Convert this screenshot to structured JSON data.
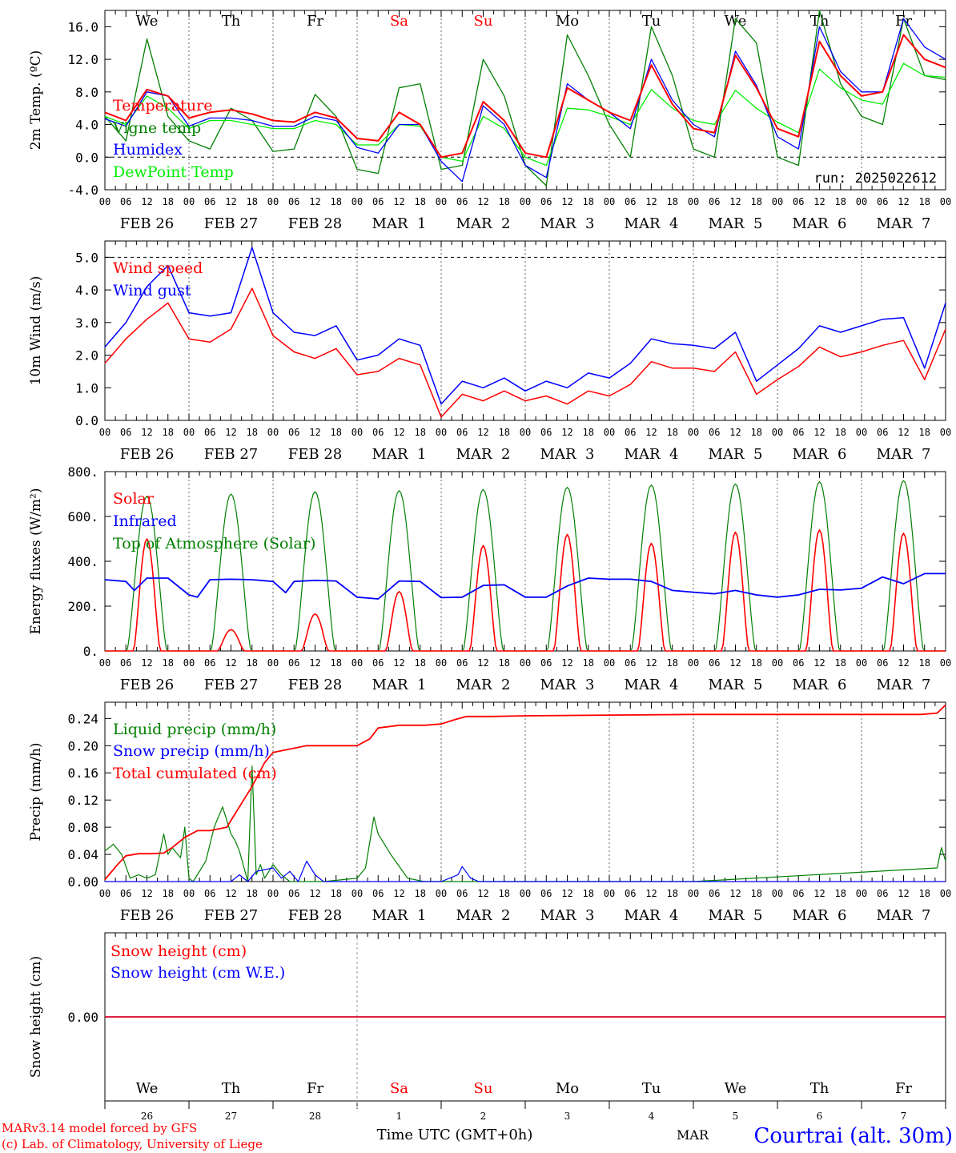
{
  "run_label": "run: 2025022612",
  "footer": {
    "model": "MARv3.14 model forced by GFS",
    "lab": "(c) Lab. of Climatology, University of Liege",
    "xlabel": "Time UTC (GMT+0h)",
    "month": "MAR",
    "station": "Courtrai (alt. 30m)"
  },
  "hour_ticks": [
    "00",
    "06",
    "12",
    "18"
  ],
  "date_labels": [
    "FEB 26",
    "FEB 27",
    "FEB 28",
    "MAR  1",
    "MAR  2",
    "MAR  3",
    "MAR  4",
    "MAR  5",
    "MAR  6",
    "MAR  7"
  ],
  "weekdays": [
    "We",
    "Th",
    "Fr",
    "Sa",
    "Su",
    "Mo",
    "Tu",
    "We",
    "Th",
    "Fr"
  ],
  "day_numbers": [
    "26",
    "27",
    "28",
    "1",
    "2",
    "3",
    "4",
    "5",
    "6",
    "7"
  ],
  "colors": {
    "weekend": "#ff0000",
    "weekday": "#000000",
    "red": "#ff0000",
    "blue": "#0000ff",
    "green": "#008000",
    "lightgreen": "#00ee00"
  },
  "chart_data": [
    {
      "type": "line",
      "ylabel": "2m Temp. (ºC)",
      "ylim": [
        -4,
        18
      ],
      "yticks": [
        "-4.0",
        "0.0",
        "4.0",
        "8.0",
        "12.0",
        "16.0"
      ],
      "grid": "dotted day separators, dashed zero line",
      "legend": "top-left",
      "x_days": [
        0,
        0.25,
        0.5,
        0.75,
        1,
        1.25,
        1.5,
        1.75,
        2,
        2.25,
        2.5,
        2.75,
        3,
        3.25,
        3.5,
        3.75,
        4,
        4.25,
        4.5,
        4.75,
        5,
        5.25,
        5.5,
        5.75,
        6,
        6.25,
        6.5,
        6.75,
        7,
        7.25,
        7.5,
        7.75,
        8,
        8.25,
        8.5,
        8.75,
        9,
        9.25,
        9.5,
        9.75,
        10
      ],
      "series": [
        {
          "name": "Temperature",
          "color": "#ff0000",
          "values": [
            5.5,
            4.5,
            8.3,
            7.5,
            4.8,
            5.5,
            5.8,
            5.3,
            4.5,
            4.3,
            5.5,
            4.8,
            2.3,
            2,
            5.5,
            4,
            0,
            0.5,
            6.8,
            4.5,
            0.5,
            0,
            8.5,
            7,
            5.5,
            4.5,
            11.3,
            6.5,
            3.5,
            3,
            12.5,
            8.5,
            3.5,
            2.5,
            14.2,
            10,
            7.5,
            8,
            15,
            12,
            11
          ]
        },
        {
          "name": "Vigne temp",
          "color": "#008000",
          "values": [
            5,
            2,
            14.5,
            5,
            2,
            1,
            6,
            4.5,
            0.7,
            1,
            7.7,
            5,
            -1.5,
            -2,
            8.5,
            9,
            -1.5,
            -1,
            12,
            7.5,
            -1,
            -3.5,
            15,
            10,
            4,
            0,
            16,
            10,
            1,
            0,
            17,
            14,
            0,
            -1,
            18,
            9,
            5,
            4,
            17,
            10,
            9.5
          ]
        },
        {
          "name": "Humidex",
          "color": "#0000ff",
          "values": [
            4.7,
            3.8,
            8,
            7.5,
            3.8,
            4.8,
            4.8,
            4.5,
            3.8,
            3.8,
            5,
            4.5,
            1.2,
            0.5,
            4,
            4,
            -0.5,
            -3,
            6.3,
            4,
            -1,
            -2.5,
            9,
            7,
            5.5,
            3.5,
            12,
            7,
            4,
            2.5,
            13,
            8.8,
            2.5,
            1,
            16,
            10.5,
            8,
            8,
            17,
            13.5,
            12
          ]
        },
        {
          "name": "DewPoint Temp",
          "color": "#00ee00",
          "values": [
            5,
            4,
            7.5,
            6,
            3.5,
            4.5,
            4.5,
            4,
            3.5,
            3.5,
            4.5,
            4,
            1.5,
            1.5,
            4,
            3.8,
            0,
            -0.5,
            5,
            3.5,
            0,
            -1,
            6,
            5.8,
            5,
            4,
            8.3,
            6,
            4.5,
            4,
            8.2,
            6,
            4.3,
            3,
            10.8,
            8.5,
            7,
            6.5,
            11.5,
            10,
            9.8
          ]
        }
      ]
    },
    {
      "type": "line",
      "ylabel": "10m Wind (m/s)",
      "ylim": [
        0,
        5.5
      ],
      "yticks": [
        "0.0",
        "1.0",
        "2.0",
        "3.0",
        "4.0",
        "5.0"
      ],
      "grid": "dotted day separators, dashed line at 5.0",
      "legend": "top-left",
      "x_days": [
        0,
        0.25,
        0.5,
        0.75,
        1,
        1.25,
        1.5,
        1.75,
        2,
        2.25,
        2.5,
        2.75,
        3,
        3.25,
        3.5,
        3.75,
        4,
        4.25,
        4.5,
        4.75,
        5,
        5.25,
        5.5,
        5.75,
        6,
        6.25,
        6.5,
        6.75,
        7,
        7.25,
        7.5,
        7.75,
        8,
        8.25,
        8.5,
        8.75,
        9,
        9.25,
        9.5,
        9.75,
        10
      ],
      "series": [
        {
          "name": "Wind speed",
          "color": "#ff0000",
          "values": [
            1.75,
            2.5,
            3.1,
            3.6,
            2.5,
            2.4,
            2.8,
            4.05,
            2.6,
            2.1,
            1.9,
            2.2,
            1.4,
            1.5,
            1.9,
            1.7,
            0.1,
            0.8,
            0.6,
            0.9,
            0.6,
            0.75,
            0.5,
            0.9,
            0.75,
            1.1,
            1.8,
            1.6,
            1.6,
            1.5,
            2.1,
            0.8,
            1.25,
            1.65,
            2.25,
            1.95,
            2.1,
            2.3,
            2.45,
            1.25,
            2.8
          ]
        },
        {
          "name": "Wind gust",
          "color": "#0000ff",
          "values": [
            2.25,
            3,
            4.1,
            4.75,
            3.3,
            3.2,
            3.3,
            5.3,
            3.3,
            2.7,
            2.6,
            2.9,
            1.85,
            2,
            2.5,
            2.3,
            0.5,
            1.2,
            1,
            1.3,
            0.9,
            1.2,
            1,
            1.45,
            1.3,
            1.75,
            2.5,
            2.35,
            2.3,
            2.2,
            2.7,
            1.2,
            1.7,
            2.2,
            2.9,
            2.7,
            2.9,
            3.1,
            3.15,
            1.6,
            3.6
          ]
        }
      ]
    },
    {
      "type": "line",
      "ylabel": "Energy fluxes (W/m²)",
      "ylim": [
        0,
        800
      ],
      "yticks": [
        "0.",
        "200.",
        "400.",
        "600.",
        "800."
      ],
      "grid": "dotted day separators",
      "legend": "top-left",
      "series": [
        {
          "name": "Solar",
          "color": "#ff0000",
          "daily_peak_hour": 12,
          "daily_peaks": [
            500,
            95,
            165,
            265,
            470,
            520,
            480,
            530,
            540,
            525
          ]
        },
        {
          "name": "Infrared",
          "color": "#0000ff",
          "x_days": [
            0,
            0.25,
            0.35,
            0.5,
            0.75,
            1,
            1.1,
            1.25,
            1.5,
            1.75,
            2,
            2.15,
            2.25,
            2.5,
            2.75,
            3,
            3.25,
            3.5,
            3.75,
            4,
            4.25,
            4.5,
            4.75,
            5,
            5.25,
            5.5,
            5.75,
            6,
            6.25,
            6.5,
            6.75,
            7,
            7.25,
            7.5,
            7.75,
            8,
            8.25,
            8.5,
            8.75,
            9,
            9.25,
            9.5,
            9.75,
            10
          ],
          "values": [
            318,
            310,
            270,
            325,
            325,
            250,
            240,
            318,
            320,
            318,
            310,
            260,
            310,
            315,
            312,
            240,
            232,
            312,
            310,
            238,
            240,
            292,
            295,
            240,
            240,
            290,
            325,
            320,
            320,
            310,
            270,
            262,
            255,
            270,
            250,
            240,
            250,
            275,
            272,
            280,
            330,
            300,
            345,
            345
          ]
        },
        {
          "name": "Top of Atmosphere (Solar)",
          "color": "#008000",
          "daily_peak_hour": 12,
          "daily_peaks": [
            690,
            700,
            710,
            715,
            720,
            730,
            740,
            745,
            755,
            760
          ]
        }
      ]
    },
    {
      "type": "line",
      "ylabel": "Precip (mm/h)",
      "ylim": [
        0,
        0.264
      ],
      "yticks": [
        "0.00",
        "0.04",
        "0.08",
        "0.12",
        "0.16",
        "0.20",
        "0.24"
      ],
      "grid": "dotted day separators, dashed line at 0.264",
      "legend": "top-left",
      "series": [
        {
          "name": "Liquid precip (mm/h)",
          "color": "#008000",
          "x_days": [
            0,
            0.1,
            0.2,
            0.3,
            0.4,
            0.5,
            0.6,
            0.7,
            0.75,
            0.8,
            0.9,
            0.95,
            1,
            1.05,
            1.2,
            1.3,
            1.4,
            1.5,
            1.55,
            1.6,
            1.7,
            1.75,
            1.8,
            1.85,
            1.9,
            2,
            2.1,
            2.2,
            2.4,
            2.6,
            3,
            3.1,
            3.2,
            3.25,
            3.4,
            3.6,
            3.8,
            4,
            4.5,
            5,
            7,
            9.9,
            9.95,
            10
          ],
          "values": [
            0.045,
            0.055,
            0.04,
            0.005,
            0.01,
            0.005,
            0.01,
            0.07,
            0.04,
            0.05,
            0.035,
            0.08,
            0.005,
            0,
            0.03,
            0.08,
            0.11,
            0.07,
            0.06,
            0.045,
            0,
            0.17,
            0.01,
            0.025,
            0.005,
            0.025,
            0.01,
            0,
            0,
            0,
            0.005,
            0.02,
            0.095,
            0.07,
            0.04,
            0.005,
            0,
            0,
            0,
            0,
            0,
            0.02,
            0.05,
            0.03
          ]
        },
        {
          "name": "Snow precip (mm/h)",
          "color": "#0000ff",
          "x_days": [
            0,
            1.5,
            1.6,
            1.7,
            1.8,
            2,
            2.1,
            2.2,
            2.3,
            2.4,
            2.5,
            2.6,
            3,
            4,
            4.1,
            4.2,
            4.25,
            4.35,
            4.45,
            5,
            6,
            7,
            10
          ],
          "values": [
            0,
            0,
            0.01,
            0,
            0.015,
            0.02,
            0.005,
            0.015,
            0,
            0.03,
            0.01,
            0,
            0,
            0,
            0.005,
            0.01,
            0.022,
            0.005,
            0,
            0,
            0,
            0,
            0
          ]
        },
        {
          "name": "Total cumulated (cm)",
          "color": "#ff0000",
          "x_days": [
            0,
            0.15,
            0.25,
            0.4,
            0.55,
            0.7,
            0.8,
            0.95,
            1.1,
            1.25,
            1.45,
            1.6,
            1.75,
            1.9,
            2,
            2.2,
            2.4,
            2.7,
            3,
            3.15,
            3.25,
            3.5,
            3.8,
            4,
            4.15,
            4.3,
            4.6,
            5,
            6,
            7,
            8,
            9,
            9.7,
            9.9,
            10
          ],
          "values": [
            0.003,
            0.025,
            0.038,
            0.041,
            0.041,
            0.042,
            0.05,
            0.065,
            0.075,
            0.075,
            0.08,
            0.11,
            0.14,
            0.175,
            0.19,
            0.195,
            0.2,
            0.2,
            0.2,
            0.21,
            0.226,
            0.23,
            0.23,
            0.232,
            0.238,
            0.243,
            0.243,
            0.244,
            0.245,
            0.246,
            0.246,
            0.246,
            0.246,
            0.248,
            0.26
          ]
        }
      ]
    },
    {
      "type": "line",
      "ylabel": "Snow height (cm)",
      "yticks": [
        "0.00"
      ],
      "legend": "top-left",
      "series": [
        {
          "name": "Snow height (cm)",
          "color": "#ff0000",
          "values": [
            0,
            0
          ]
        },
        {
          "name": "Snow height (cm W.E.)",
          "color": "#0000ff",
          "values": [
            0,
            0
          ]
        }
      ]
    }
  ]
}
